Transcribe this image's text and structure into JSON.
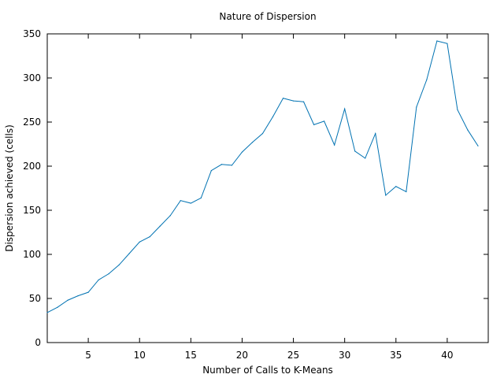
{
  "chart_data": {
    "type": "line",
    "title": "Nature of Dispersion",
    "xlabel": "Number of Calls to K-Means",
    "ylabel": "Dispersion achieved (cells)",
    "xlim": [
      1,
      44
    ],
    "ylim": [
      0,
      350
    ],
    "xticks": [
      5,
      10,
      15,
      20,
      25,
      30,
      35,
      40
    ],
    "yticks": [
      0,
      50,
      100,
      150,
      200,
      250,
      300,
      350
    ],
    "grid": false,
    "line_color": "#0072b2",
    "series": [
      {
        "x": [
          1,
          2,
          3,
          4,
          5,
          6,
          7,
          8,
          9,
          10,
          11,
          12,
          13,
          14,
          15,
          16,
          17,
          18,
          19,
          20,
          21,
          22,
          23,
          24,
          25,
          26,
          27,
          28,
          29,
          30,
          31,
          32,
          33,
          34,
          35,
          36,
          37,
          38,
          39,
          40,
          41,
          42,
          43
        ],
        "values": [
          34,
          40,
          48,
          53,
          57,
          71,
          78,
          88,
          101,
          114,
          120,
          132,
          144,
          161,
          158,
          164,
          195,
          202,
          201,
          216,
          227,
          237,
          256,
          277,
          274,
          273,
          247,
          251,
          224,
          265,
          217,
          209,
          237,
          167,
          177,
          171,
          267,
          298,
          342,
          339,
          264,
          241,
          223
        ]
      }
    ]
  }
}
